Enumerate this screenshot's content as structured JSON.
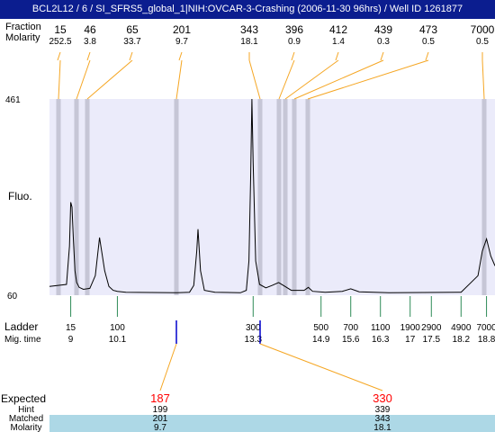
{
  "title": "BCL2L12 / 6 / SI_SFRS5_global_1|NIH:OVCAR-3-Crashing (2006-11-30 96hrs) / Well ID 1261877",
  "labels": {
    "fraction_top": "Fraction",
    "molarity_top": "Molarity",
    "fluo": "Fluo.",
    "ladder": "Ladder",
    "mig_time": "Mig. time",
    "expected": "Expected",
    "hint": "Hint",
    "matched": "Matched",
    "molarity_bottom": "Molarity"
  },
  "top_fractions": [
    {
      "size": "15",
      "molarity": "252.5"
    },
    {
      "size": "46",
      "molarity": "3.8"
    },
    {
      "size": "65",
      "molarity": "33.7"
    },
    {
      "size": "201",
      "molarity": "9.7"
    },
    {
      "size": "343",
      "molarity": "18.1"
    },
    {
      "size": "396",
      "molarity": "0.9"
    },
    {
      "size": "412",
      "molarity": "1.4"
    },
    {
      "size": "439",
      "molarity": "0.3"
    },
    {
      "size": "473",
      "molarity": "0.5"
    },
    {
      "size": "7000",
      "molarity": "0.5"
    }
  ],
  "ladder": [
    {
      "size": "15",
      "time": "9"
    },
    {
      "size": "100",
      "time": "10.1"
    },
    {
      "size": "300",
      "time": "13.3"
    },
    {
      "size": "500",
      "time": "14.9"
    },
    {
      "size": "700",
      "time": "15.6"
    },
    {
      "size": "1100",
      "time": "16.3"
    },
    {
      "size": "1900",
      "time": "17"
    },
    {
      "size": "2900",
      "time": "17.5"
    },
    {
      "size": "4900",
      "time": "18.2"
    },
    {
      "size": "7000",
      "time": "18.8"
    }
  ],
  "expected": [
    {
      "expected": "187",
      "hint": "199",
      "matched": "201",
      "molarity": "9.7"
    },
    {
      "expected": "330",
      "hint": "339",
      "matched": "343",
      "molarity": "18.1"
    }
  ],
  "colors": {
    "title_bg": "#0b1d8f",
    "plot_bg": "#ebebfa",
    "band": "#c6c6d6",
    "leader": "#f5a623",
    "ladder_line": "#2e8b57",
    "expected": "#ff0000",
    "marker": "#0000cc",
    "table_bg": "#add8e6"
  },
  "chart_data": {
    "type": "line",
    "ylabel": "Fluo.",
    "ylim": [
      60,
      461
    ],
    "xlim": [
      8.5,
      19.0
    ],
    "x": [
      8.5,
      8.9,
      8.97,
      9.0,
      9.03,
      9.06,
      9.1,
      9.14,
      9.2,
      9.3,
      9.45,
      9.58,
      9.68,
      9.8,
      9.9,
      10.0,
      10.1,
      10.3,
      11.5,
      11.8,
      11.9,
      11.97,
      12.0,
      12.06,
      12.15,
      12.4,
      13.0,
      13.14,
      13.2,
      13.24,
      13.27,
      13.3,
      13.36,
      13.45,
      13.6,
      13.75,
      13.9,
      14.05,
      14.2,
      14.5,
      14.6,
      14.7,
      15.0,
      15.4,
      15.6,
      15.8,
      16.5,
      18.2,
      18.6,
      18.7,
      18.8,
      18.9,
      19.0
    ],
    "y": [
      78,
      82,
      160,
      250,
      240,
      180,
      110,
      86,
      76,
      72,
      74,
      100,
      178,
      110,
      78,
      70,
      68,
      66,
      65,
      66,
      80,
      150,
      195,
      110,
      70,
      66,
      65,
      70,
      130,
      300,
      461,
      330,
      130,
      82,
      75,
      80,
      86,
      78,
      70,
      70,
      76,
      68,
      66,
      68,
      73,
      67,
      65,
      66,
      100,
      150,
      175,
      140,
      120
    ]
  }
}
